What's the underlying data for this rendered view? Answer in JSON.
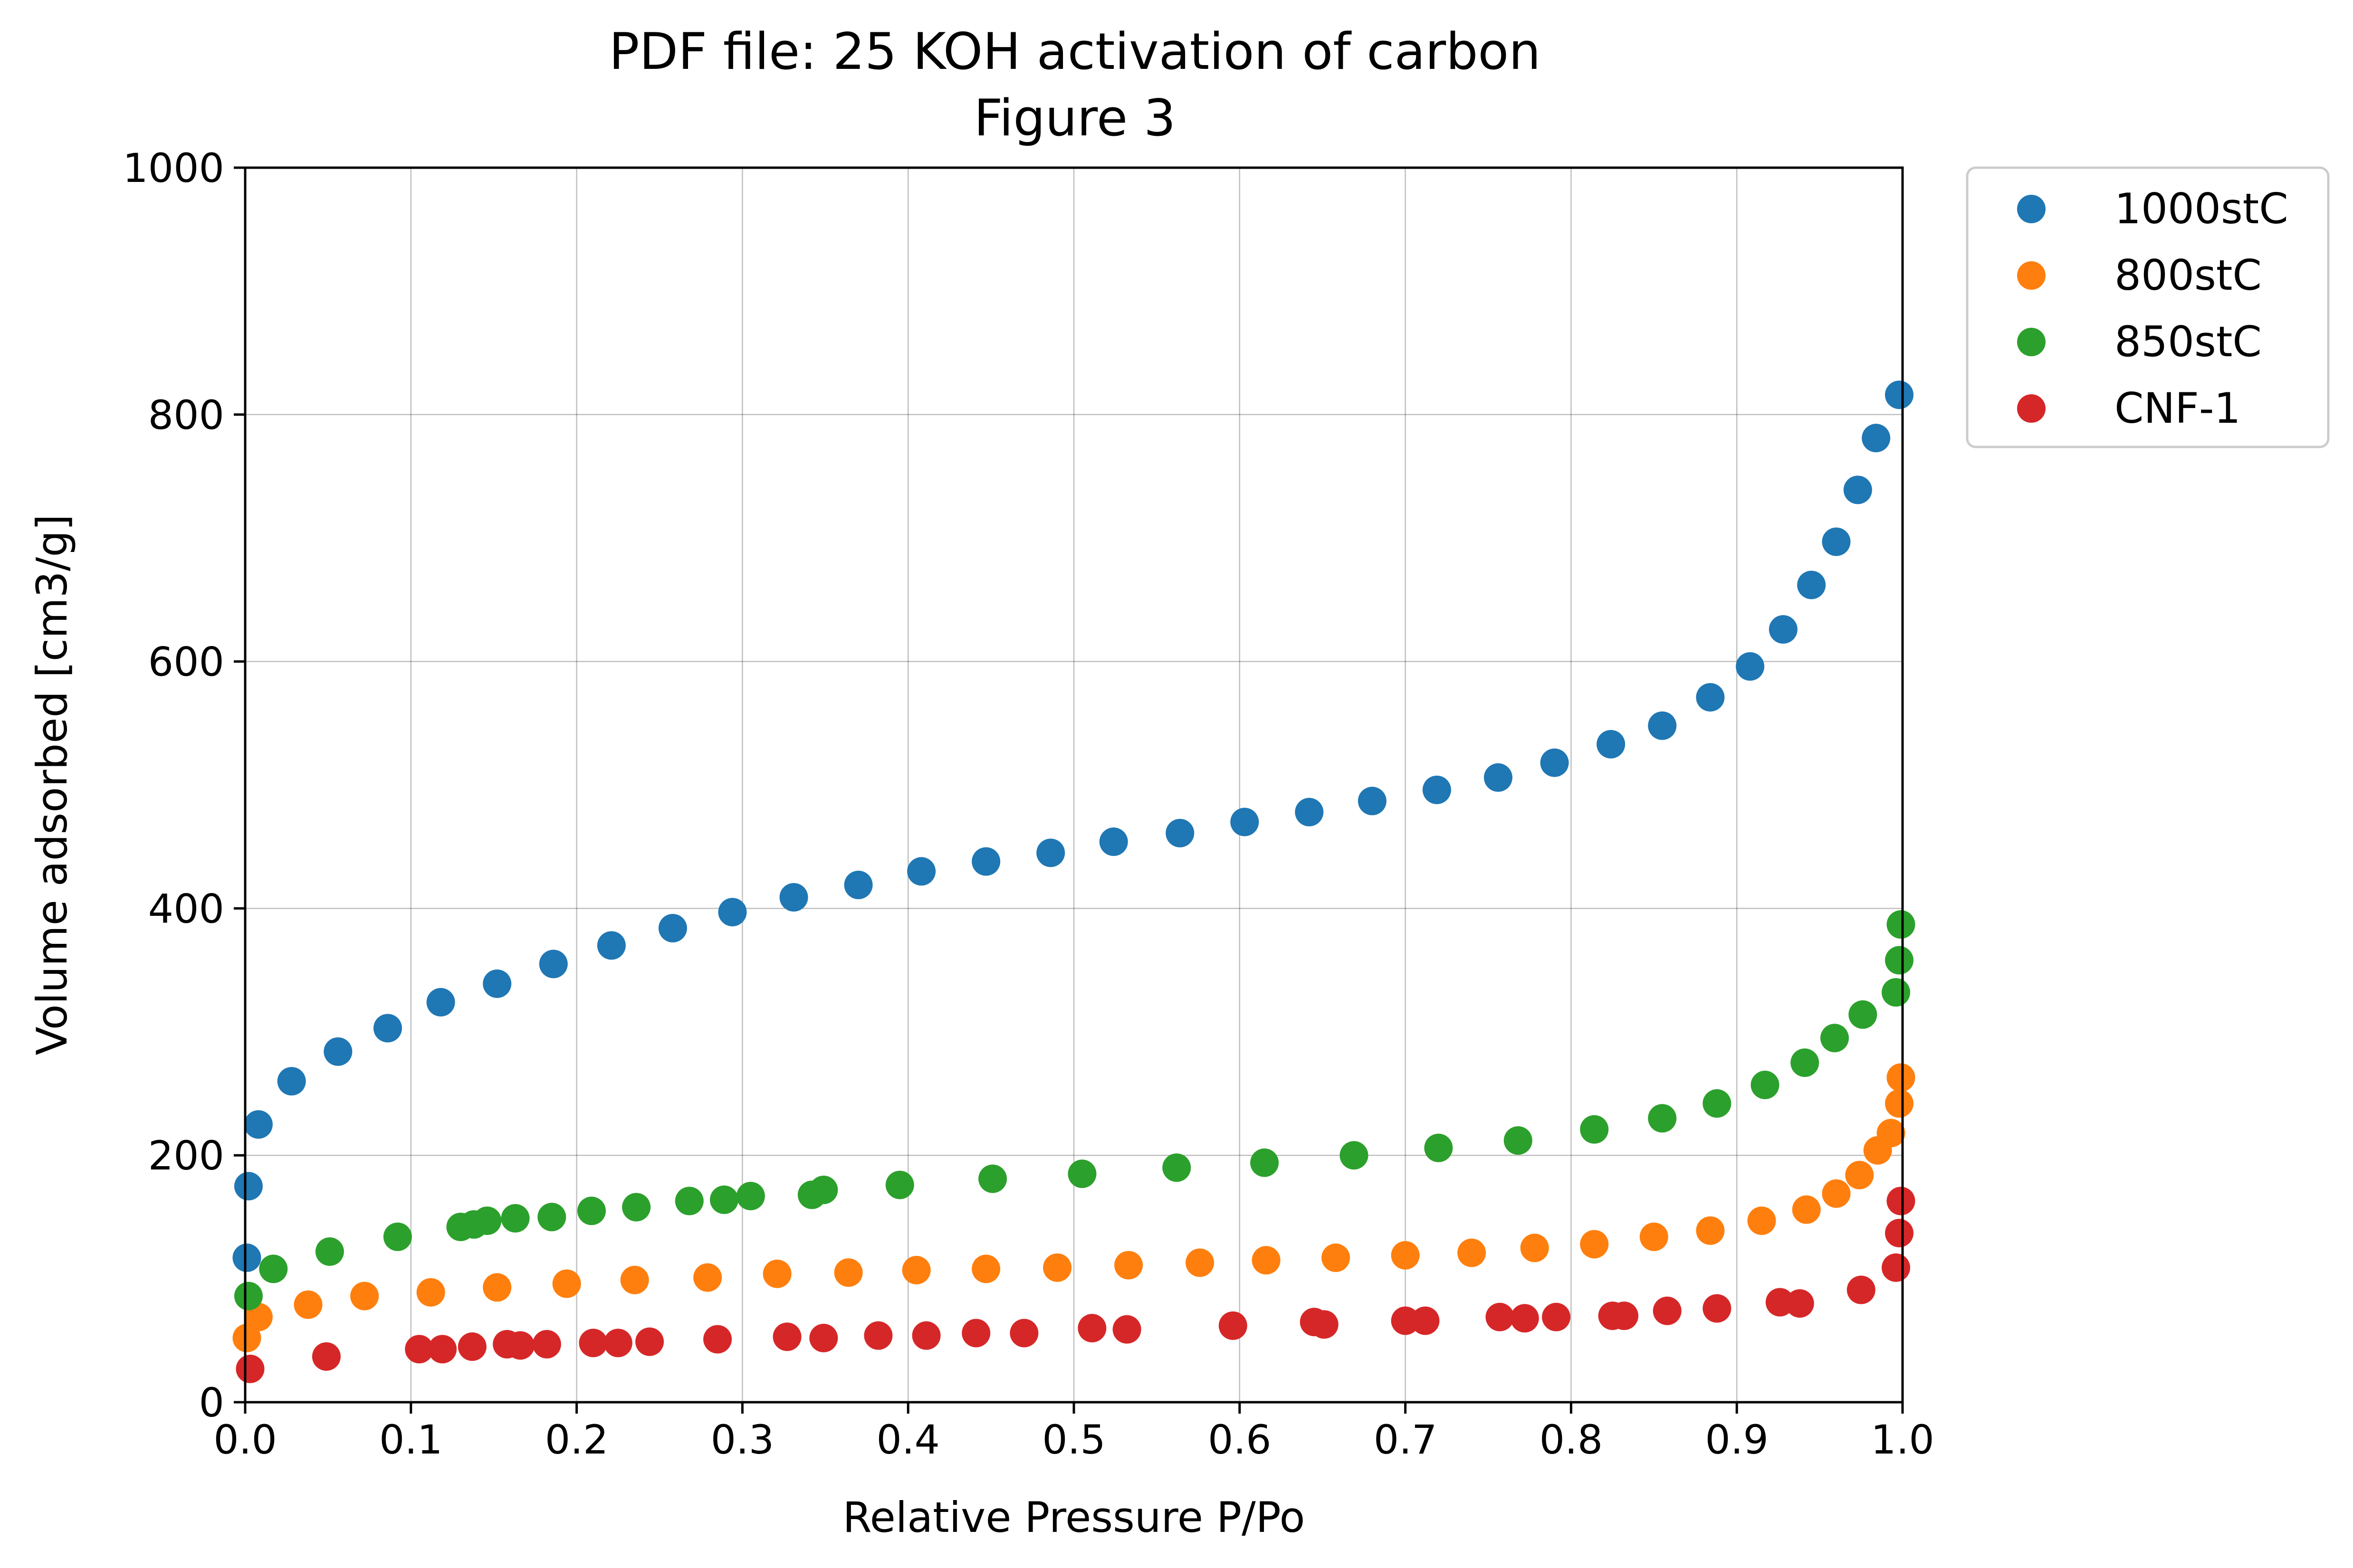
{
  "chart_data": {
    "type": "scatter",
    "title": "PDF file: 25 KOH activation of carbon",
    "subtitle": "Figure 3",
    "xlabel": "Relative Pressure P/Po",
    "ylabel": "Volume adsorbed [cm3/g]",
    "xlim": [
      0.0,
      1.0
    ],
    "ylim": [
      0,
      1000
    ],
    "xticks": [
      0.0,
      0.1,
      0.2,
      0.3,
      0.4,
      0.5,
      0.6,
      0.7,
      0.8,
      0.9,
      1.0
    ],
    "yticks": [
      0,
      200,
      400,
      600,
      800,
      1000
    ],
    "xtick_labels": [
      "0.0",
      "0.1",
      "0.2",
      "0.3",
      "0.4",
      "0.5",
      "0.6",
      "0.7",
      "0.8",
      "0.9",
      "1.0"
    ],
    "ytick_labels": [
      "0",
      "200",
      "400",
      "600",
      "800",
      "1000"
    ],
    "grid": true,
    "legend_position": "outside-top-right",
    "series": [
      {
        "name": "1000stC",
        "color": "#1f77b4",
        "x": [
          0.001,
          0.002,
          0.008,
          0.028,
          0.056,
          0.086,
          0.118,
          0.152,
          0.186,
          0.221,
          0.258,
          0.294,
          0.331,
          0.37,
          0.408,
          0.447,
          0.486,
          0.524,
          0.564,
          0.603,
          0.642,
          0.68,
          0.719,
          0.756,
          0.79,
          0.824,
          0.855,
          0.884,
          0.908,
          0.928,
          0.945,
          0.96,
          0.973,
          0.984,
          0.998
        ],
        "y": [
          117,
          175,
          225,
          260,
          284,
          303,
          324,
          339,
          355,
          370,
          384,
          397,
          409,
          419,
          430,
          438,
          445,
          454,
          461,
          470,
          478,
          487,
          496,
          506,
          518,
          533,
          548,
          571,
          596,
          626,
          662,
          697,
          739,
          781,
          816
        ]
      },
      {
        "name": "800stC",
        "color": "#ff7f0e",
        "x": [
          0.001,
          0.008,
          0.038,
          0.072,
          0.112,
          0.152,
          0.194,
          0.235,
          0.279,
          0.321,
          0.364,
          0.405,
          0.447,
          0.49,
          0.533,
          0.576,
          0.616,
          0.658,
          0.7,
          0.74,
          0.778,
          0.814,
          0.85,
          0.884,
          0.915,
          0.942,
          0.96,
          0.974,
          0.985,
          0.993,
          0.998,
          0.999
        ],
        "y": [
          52,
          69,
          79,
          86,
          89,
          93,
          96,
          99,
          101,
          104,
          105,
          107,
          108,
          109,
          111,
          113,
          115,
          117,
          119,
          121,
          125,
          128,
          134,
          139,
          147,
          156,
          169,
          184,
          204,
          218,
          242,
          263
        ]
      },
      {
        "name": "850stC",
        "color": "#2ca02c",
        "x": [
          0.002,
          0.017,
          0.051,
          0.092,
          0.13,
          0.138,
          0.146,
          0.163,
          0.185,
          0.209,
          0.236,
          0.268,
          0.289,
          0.305,
          0.342,
          0.349,
          0.395,
          0.451,
          0.505,
          0.562,
          0.615,
          0.669,
          0.72,
          0.768,
          0.814,
          0.855,
          0.888,
          0.917,
          0.941,
          0.959,
          0.976,
          0.996,
          0.998,
          0.999
        ],
        "y": [
          86,
          108,
          122,
          134,
          142,
          144,
          147,
          149,
          150,
          155,
          158,
          163,
          164,
          167,
          168,
          172,
          176,
          181,
          185,
          190,
          194,
          200,
          206,
          212,
          221,
          230,
          242,
          257,
          275,
          295,
          314,
          332,
          358,
          387
        ]
      },
      {
        "name": "CNF-1",
        "color": "#d62728",
        "x": [
          0.003,
          0.049,
          0.105,
          0.119,
          0.137,
          0.158,
          0.166,
          0.182,
          0.21,
          0.225,
          0.244,
          0.285,
          0.327,
          0.349,
          0.382,
          0.411,
          0.441,
          0.47,
          0.511,
          0.532,
          0.596,
          0.645,
          0.651,
          0.7,
          0.712,
          0.757,
          0.772,
          0.791,
          0.825,
          0.832,
          0.858,
          0.888,
          0.926,
          0.938,
          0.975,
          0.996,
          0.998,
          0.999
        ],
        "y": [
          27,
          37,
          43,
          43,
          45,
          47,
          46,
          47,
          48,
          48,
          49,
          51,
          53,
          52,
          54,
          54,
          56,
          56,
          60,
          59,
          62,
          65,
          63,
          66,
          66,
          69,
          68,
          69,
          70,
          70,
          74,
          76,
          81,
          80,
          91,
          109,
          137,
          163
        ]
      }
    ]
  }
}
